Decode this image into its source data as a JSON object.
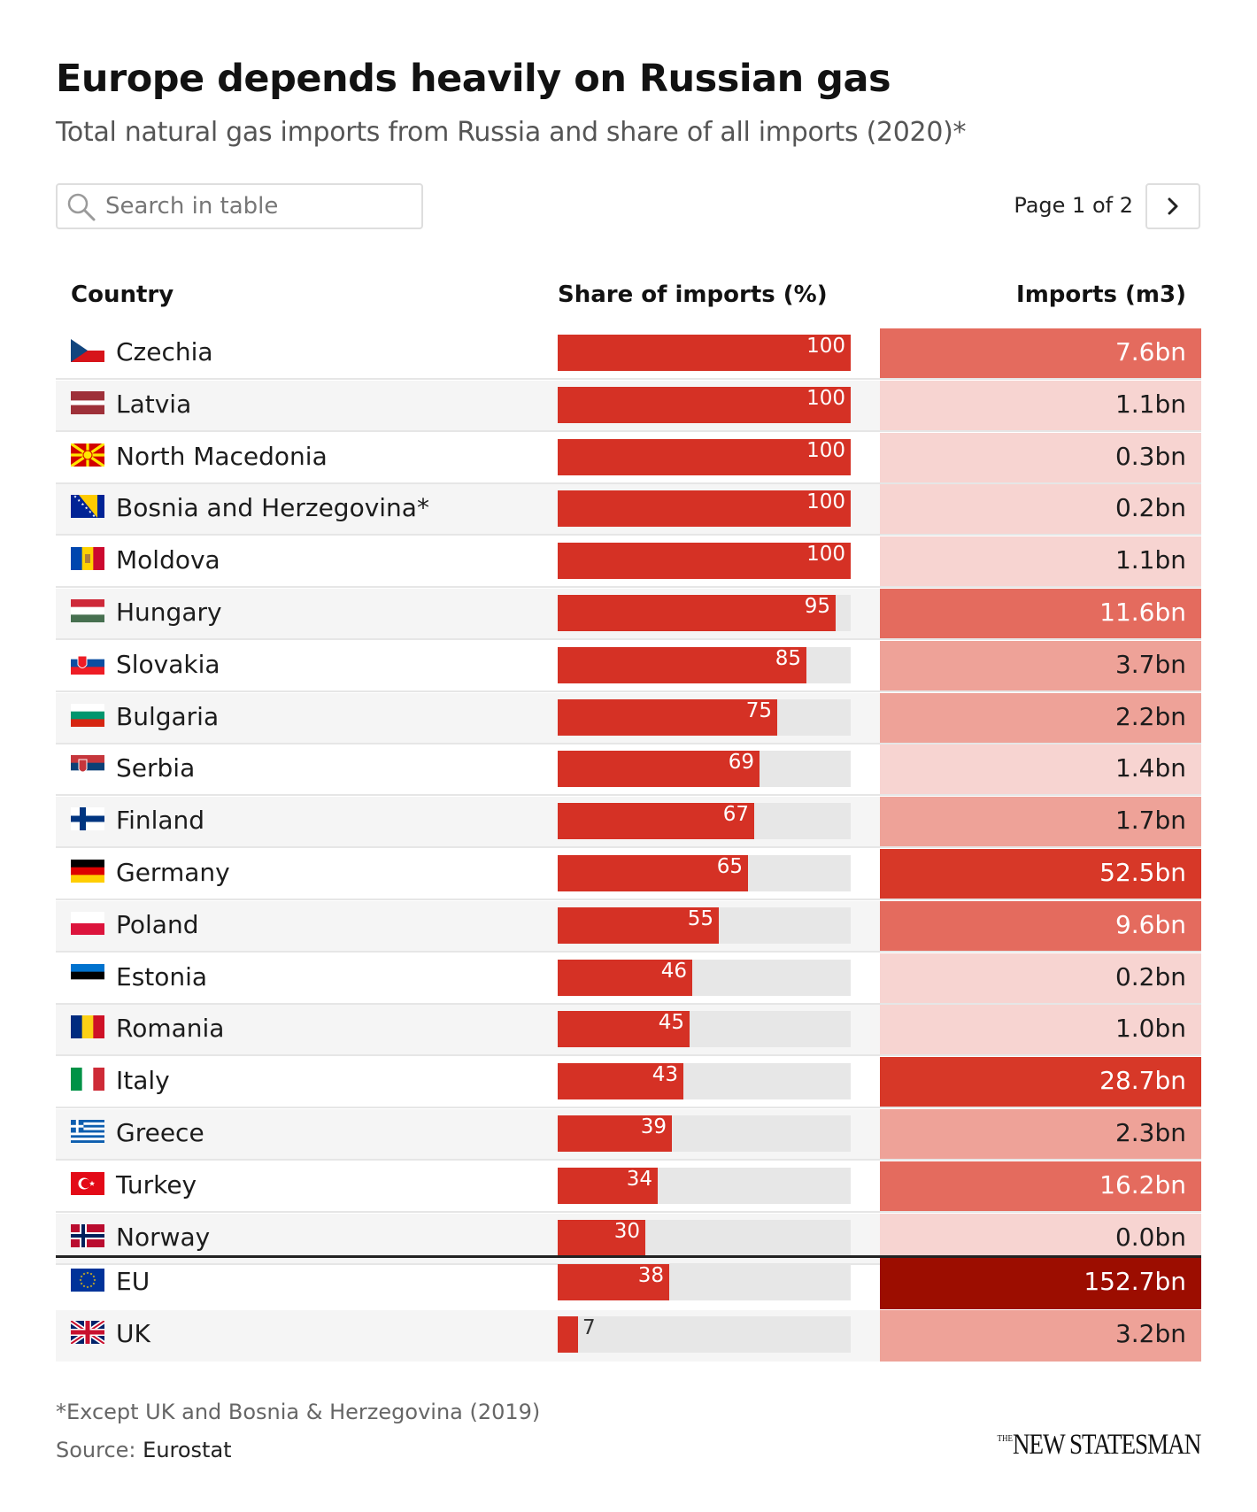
{
  "header": {
    "title": "Europe depends heavily on Russian gas",
    "subtitle": "Total natural gas imports from Russia and share of all imports (2020)*"
  },
  "search": {
    "placeholder": "Search in table",
    "icon": "search-icon"
  },
  "pagination": {
    "label": "Page 1 of 2",
    "next_icon": "chevron-right-icon"
  },
  "columns": {
    "country": "Country",
    "share": "Share of imports (%)",
    "imports": "Imports (m3)"
  },
  "colors": {
    "bar": "#d53125",
    "track": "#e7e7e7",
    "shade_1": "#f7d4d1",
    "shade_2": "#eea298",
    "shade_3": "#e46b5e",
    "shade_4": "#d73828",
    "shade_5": "#9c0d00"
  },
  "chart_data": {
    "type": "table",
    "title": "Europe depends heavily on Russian gas",
    "subtitle": "Total natural gas imports from Russia and share of all imports (2020)*",
    "share_range": [
      0,
      100
    ],
    "rows": [
      {
        "country": "Czechia",
        "flag": "czechia-flag",
        "share": 100,
        "imports": "7.6bn",
        "shade": 3
      },
      {
        "country": "Latvia",
        "flag": "latvia-flag",
        "share": 100,
        "imports": "1.1bn",
        "shade": 1
      },
      {
        "country": "North Macedonia",
        "flag": "north-macedonia-flag",
        "share": 100,
        "imports": "0.3bn",
        "shade": 1
      },
      {
        "country": "Bosnia and Herzegovina*",
        "flag": "bosnia-herzegovina-flag",
        "share": 100,
        "imports": "0.2bn",
        "shade": 1
      },
      {
        "country": "Moldova",
        "flag": "moldova-flag",
        "share": 100,
        "imports": "1.1bn",
        "shade": 1
      },
      {
        "country": "Hungary",
        "flag": "hungary-flag",
        "share": 95,
        "imports": "11.6bn",
        "shade": 3
      },
      {
        "country": "Slovakia",
        "flag": "slovakia-flag",
        "share": 85,
        "imports": "3.7bn",
        "shade": 2
      },
      {
        "country": "Bulgaria",
        "flag": "bulgaria-flag",
        "share": 75,
        "imports": "2.2bn",
        "shade": 2
      },
      {
        "country": "Serbia",
        "flag": "serbia-flag",
        "share": 69,
        "imports": "1.4bn",
        "shade": 1
      },
      {
        "country": "Finland",
        "flag": "finland-flag",
        "share": 67,
        "imports": "1.7bn",
        "shade": 2
      },
      {
        "country": "Germany",
        "flag": "germany-flag",
        "share": 65,
        "imports": "52.5bn",
        "shade": 4
      },
      {
        "country": "Poland",
        "flag": "poland-flag",
        "share": 55,
        "imports": "9.6bn",
        "shade": 3
      },
      {
        "country": "Estonia",
        "flag": "estonia-flag",
        "share": 46,
        "imports": "0.2bn",
        "shade": 1
      },
      {
        "country": "Romania",
        "flag": "romania-flag",
        "share": 45,
        "imports": "1.0bn",
        "shade": 1
      },
      {
        "country": "Italy",
        "flag": "italy-flag",
        "share": 43,
        "imports": "28.7bn",
        "shade": 4
      },
      {
        "country": "Greece",
        "flag": "greece-flag",
        "share": 39,
        "imports": "2.3bn",
        "shade": 2
      },
      {
        "country": "Turkey",
        "flag": "turkey-flag",
        "share": 34,
        "imports": "16.2bn",
        "shade": 3
      },
      {
        "country": "Norway",
        "flag": "norway-flag",
        "share": 30,
        "imports": "0.0bn",
        "shade": 1
      }
    ],
    "totals": [
      {
        "country": "EU",
        "flag": "eu-flag",
        "share": 38,
        "imports": "152.7bn",
        "shade": 5
      },
      {
        "country": "UK",
        "flag": "uk-flag",
        "share": 7,
        "imports": "3.2bn",
        "shade": 2
      }
    ]
  },
  "footer": {
    "footnote": "*Except UK and Bosnia & Herzegovina (2019)",
    "source_label": "Source:",
    "source_name": "Eurostat",
    "logo_the": "THE",
    "logo_name": "NEW STATESMAN"
  }
}
